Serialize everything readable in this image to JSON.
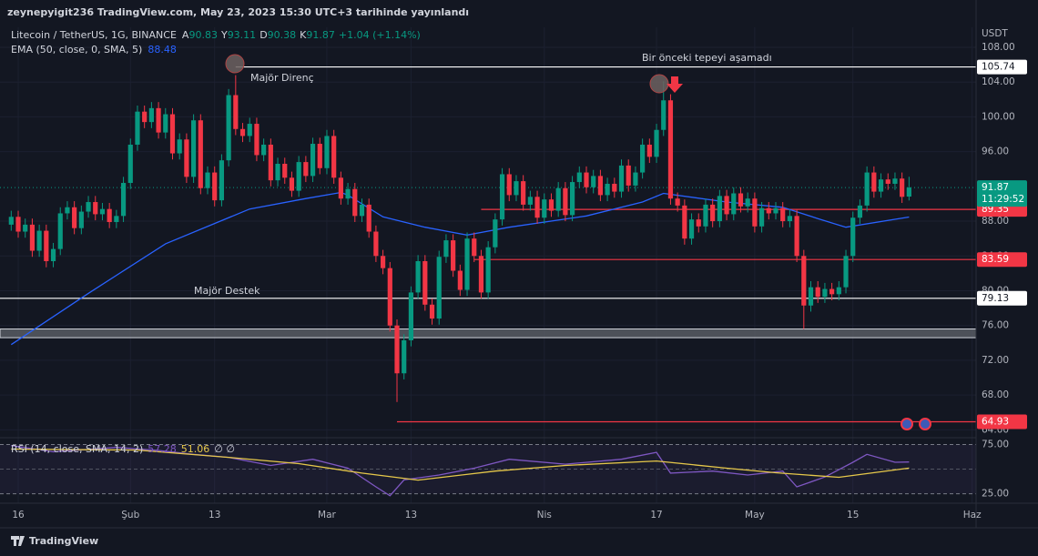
{
  "header": {
    "attribution": "zeynepyigit236 TradingView.com, May 23, 2023 15:30 UTC+3 tarihinde yayınlandı",
    "symbol": "Litecoin / TetherUS, 1G, BINANCE",
    "ohlc_labels": [
      "A",
      "Y",
      "D",
      "K"
    ],
    "change": "+1.04 (+1.14%)",
    "ema_title": "EMA (50, close, 0, SMA, 5)",
    "countdown": "11:29:52",
    "currency": "USDT",
    "brand": "TradingView",
    "annotations": [
      "Majör Direnç",
      "Bir önceki tepeyi aşamadı",
      "Majör Destek"
    ]
  },
  "chart_data": [
    {
      "type": "candlestick",
      "colors": {
        "up": "#089981",
        "down": "#f23645"
      },
      "open": [
        87.6,
        88.5,
        86.8,
        87.6,
        84.6,
        86.9,
        83.4,
        84.8,
        88.9,
        89.6,
        87.2,
        89.1,
        90.2,
        88.8,
        89.4,
        87.9,
        88.6,
        92.4,
        96.8,
        100.6,
        99.4,
        101.0,
        98.2,
        100.3,
        95.8,
        97.4,
        93.1,
        99.6,
        91.8,
        93.6,
        90.4,
        95.0,
        102.5,
        98.6,
        97.8,
        99.2,
        95.6,
        96.8,
        92.7,
        94.6,
        93.0,
        91.5,
        94.8,
        93.2,
        96.9,
        94.1,
        97.8,
        93.0,
        90.6,
        91.7,
        88.6,
        89.9,
        86.8,
        84.0,
        82.6,
        76.0,
        70.5,
        74.3,
        79.8,
        83.4,
        78.4,
        76.8,
        83.9,
        85.8,
        82.3,
        80.1,
        86.0,
        84.0,
        79.8,
        85.0,
        88.2,
        93.4,
        91.0,
        92.6,
        89.9,
        90.8,
        88.4,
        90.5,
        89.2,
        91.8,
        88.7,
        92.5,
        93.6,
        91.9,
        93.2,
        91.0,
        92.3,
        91.4,
        94.4,
        92.1,
        93.6,
        96.8,
        95.4,
        98.5,
        101.9,
        90.6,
        89.8,
        86.0,
        88.2,
        87.4,
        89.9,
        88.0,
        90.9,
        88.8,
        91.2,
        89.7,
        90.6,
        87.4,
        89.5,
        88.9,
        89.5,
        88.0,
        88.6,
        84.0,
        78.3,
        80.4,
        79.3,
        80.2,
        79.6,
        80.4,
        84.0,
        88.4,
        89.8,
        93.6,
        91.4,
        92.8,
        92.3,
        92.9,
        90.83
      ],
      "high": [
        89.2,
        89.2,
        88.3,
        88.3,
        87.6,
        87.6,
        85.5,
        89.6,
        90.3,
        90.3,
        89.8,
        90.9,
        90.9,
        90.1,
        90.1,
        89.3,
        93.1,
        97.5,
        101.3,
        101.3,
        101.7,
        101.7,
        101.0,
        101.0,
        98.1,
        98.1,
        100.3,
        100.3,
        94.3,
        94.3,
        95.7,
        103.2,
        104.8,
        99.3,
        99.9,
        99.9,
        97.5,
        97.5,
        95.3,
        95.3,
        93.7,
        95.5,
        95.5,
        97.6,
        97.6,
        98.5,
        98.5,
        93.7,
        92.4,
        92.4,
        90.6,
        90.6,
        87.5,
        84.7,
        83.3,
        76.7,
        75.0,
        80.5,
        84.1,
        84.1,
        79.1,
        84.6,
        86.5,
        86.5,
        83.0,
        86.7,
        86.7,
        84.7,
        85.7,
        88.9,
        94.1,
        94.1,
        93.3,
        93.3,
        91.5,
        91.5,
        91.2,
        91.2,
        92.5,
        92.5,
        93.2,
        94.3,
        94.3,
        93.9,
        93.9,
        93.0,
        93.0,
        95.1,
        95.1,
        94.3,
        97.5,
        97.5,
        99.2,
        104.1,
        102.6,
        91.3,
        90.5,
        88.9,
        88.9,
        90.6,
        90.6,
        91.6,
        91.6,
        91.9,
        91.9,
        91.3,
        91.3,
        90.2,
        90.2,
        90.2,
        90.2,
        89.3,
        89.3,
        84.7,
        81.1,
        81.1,
        80.9,
        80.9,
        81.1,
        84.7,
        89.1,
        90.5,
        94.3,
        94.3,
        93.5,
        93.5,
        93.6,
        93.6,
        93.11
      ],
      "low": [
        86.9,
        86.1,
        86.1,
        83.9,
        83.9,
        82.7,
        82.7,
        84.1,
        88.2,
        86.5,
        86.5,
        88.4,
        88.1,
        88.1,
        87.2,
        87.2,
        87.9,
        91.7,
        96.1,
        98.7,
        98.7,
        97.5,
        97.5,
        95.1,
        95.1,
        92.4,
        92.4,
        91.1,
        91.1,
        89.7,
        89.7,
        94.3,
        97.9,
        97.1,
        97.1,
        94.9,
        94.9,
        92.0,
        92.0,
        92.3,
        90.8,
        90.8,
        92.5,
        92.5,
        93.4,
        93.4,
        92.3,
        89.9,
        89.9,
        87.9,
        87.9,
        86.1,
        83.3,
        81.9,
        75.3,
        67.2,
        69.8,
        73.6,
        79.1,
        77.7,
        76.1,
        76.1,
        83.2,
        81.6,
        79.4,
        79.4,
        83.3,
        79.1,
        79.1,
        84.3,
        87.5,
        90.3,
        90.3,
        89.2,
        89.2,
        87.7,
        87.7,
        88.5,
        88.5,
        88.0,
        88.0,
        91.8,
        91.2,
        91.2,
        90.3,
        90.3,
        90.7,
        90.7,
        91.4,
        91.4,
        92.9,
        94.7,
        94.7,
        97.8,
        89.9,
        89.1,
        85.3,
        85.3,
        86.7,
        86.7,
        87.3,
        87.3,
        88.1,
        88.1,
        89.0,
        89.0,
        86.7,
        86.7,
        88.2,
        88.2,
        87.3,
        87.3,
        83.3,
        75.6,
        77.6,
        78.6,
        78.6,
        78.9,
        78.9,
        79.7,
        83.3,
        87.7,
        89.1,
        90.7,
        90.7,
        91.6,
        91.6,
        90.1,
        90.38
      ],
      "close": [
        88.5,
        86.8,
        87.6,
        84.6,
        86.9,
        83.4,
        84.8,
        88.9,
        89.6,
        87.2,
        89.1,
        90.2,
        88.8,
        89.4,
        87.9,
        88.6,
        92.4,
        96.8,
        100.6,
        99.4,
        101.0,
        98.2,
        100.3,
        95.8,
        97.4,
        93.1,
        99.6,
        91.8,
        93.6,
        90.4,
        95.0,
        102.5,
        98.6,
        97.8,
        99.2,
        95.6,
        96.8,
        92.7,
        94.6,
        93.0,
        91.5,
        94.8,
        93.2,
        96.9,
        94.1,
        97.8,
        93.0,
        90.6,
        91.7,
        88.6,
        89.9,
        86.8,
        84.0,
        82.6,
        76.0,
        70.5,
        74.3,
        79.8,
        83.4,
        78.4,
        76.8,
        83.9,
        85.8,
        82.3,
        80.1,
        86.0,
        84.0,
        79.8,
        85.0,
        88.2,
        93.4,
        91.0,
        92.6,
        89.9,
        90.8,
        88.4,
        90.5,
        89.2,
        91.8,
        88.7,
        92.5,
        93.6,
        91.9,
        93.2,
        91.0,
        92.3,
        91.4,
        94.4,
        92.1,
        93.6,
        96.8,
        95.4,
        98.5,
        101.9,
        90.6,
        89.8,
        86.0,
        88.2,
        87.4,
        89.9,
        88.0,
        90.9,
        88.8,
        91.2,
        89.7,
        90.6,
        87.4,
        89.5,
        88.9,
        89.5,
        88.0,
        88.6,
        84.0,
        78.3,
        80.4,
        79.3,
        80.2,
        79.6,
        80.4,
        84.0,
        88.4,
        89.8,
        93.6,
        91.4,
        92.8,
        92.3,
        92.9,
        90.8,
        91.87
      ],
      "ema": {
        "color": "#2962ff",
        "x": [
          0,
          11,
          22,
          34,
          42,
          47,
          48,
          53,
          59,
          65,
          71,
          82,
          90,
          93,
          102,
          110,
          115,
          119,
          128
        ],
        "values": [
          73.8,
          79.7,
          85.4,
          89.4,
          90.6,
          91.3,
          91.0,
          88.5,
          87.3,
          86.4,
          87.3,
          88.6,
          90.2,
          91.2,
          90.2,
          89.6,
          88.3,
          87.3,
          88.48
        ]
      },
      "levels": [
        {
          "value": 105.74,
          "color": "#ffffff",
          "from": 32
        },
        {
          "value": 89.35,
          "color": "#f23645",
          "from": 67
        },
        {
          "value": 83.59,
          "color": "#f23645",
          "from": 66
        },
        {
          "value": 79.13,
          "color": "#ffffff"
        },
        {
          "value": 64.93,
          "color": "#f23645",
          "from": 55
        }
      ],
      "zone": [
        74.6,
        75.6
      ],
      "xlim": [
        -0.3,
        137.3
      ],
      "xticks": [
        {
          "value": 1,
          "label": "16"
        },
        {
          "value": 17,
          "label": "Şub"
        },
        {
          "value": 29,
          "label": "13"
        },
        {
          "value": 45,
          "label": "Mar"
        },
        {
          "value": 57,
          "label": "13"
        },
        {
          "value": 76,
          "label": "Nis"
        },
        {
          "value": 92,
          "label": "17"
        },
        {
          "value": 106,
          "label": "May"
        },
        {
          "value": 120,
          "label": "15"
        },
        {
          "value": 137,
          "label": "Haz"
        }
      ],
      "ylim": [
        63.2,
        110.3
      ],
      "yticks": [
        {
          "value": 108,
          "label": "108.00"
        },
        {
          "value": 104,
          "label": "104.00"
        },
        {
          "value": 100,
          "label": "100.00"
        },
        {
          "value": 96,
          "label": "96.00"
        },
        {
          "value": 88,
          "label": "88.00"
        },
        {
          "value": 84,
          "label": "84.00"
        },
        {
          "value": 80,
          "label": "80.00"
        },
        {
          "value": 76,
          "label": "76.00"
        },
        {
          "value": 72,
          "label": "72.00"
        },
        {
          "value": 68,
          "label": "68.00"
        },
        {
          "value": 64,
          "label": "64.00"
        }
      ],
      "grid": true
    },
    {
      "type": "line",
      "title": "RSI (14, close, SMA, 14, 2)",
      "extra": "∅ ∅",
      "series": [
        {
          "color": "#7e57c2",
          "x": [
            0,
            6,
            15,
            21,
            26,
            31,
            37,
            43,
            48,
            52,
            54,
            56,
            61,
            66,
            71,
            79,
            87,
            92,
            94,
            100,
            105,
            110,
            112,
            116,
            120,
            122,
            126,
            128
          ],
          "values": [
            74,
            67.6,
            72,
            69,
            65,
            62,
            53.7,
            60,
            51,
            32,
            23,
            39,
            44,
            51,
            60,
            55,
            60,
            67,
            46,
            48,
            44,
            48,
            32,
            42,
            57,
            65,
            57,
            57.28
          ]
        },
        {
          "color": "#e6c84a",
          "x": [
            0,
            18,
            31,
            41,
            50,
            58,
            69,
            79,
            92,
            102,
            109,
            118,
            128
          ],
          "values": [
            70.4,
            69.4,
            62,
            55.6,
            46,
            38.9,
            48,
            53.7,
            58.3,
            51,
            46.3,
            41.7,
            51.06
          ]
        }
      ],
      "ylim": [
        20,
        81
      ],
      "yticks": [
        {
          "value": 75,
          "label": "75.00"
        },
        {
          "value": 25,
          "label": "25.00"
        }
      ],
      "middle": 50
    }
  ]
}
